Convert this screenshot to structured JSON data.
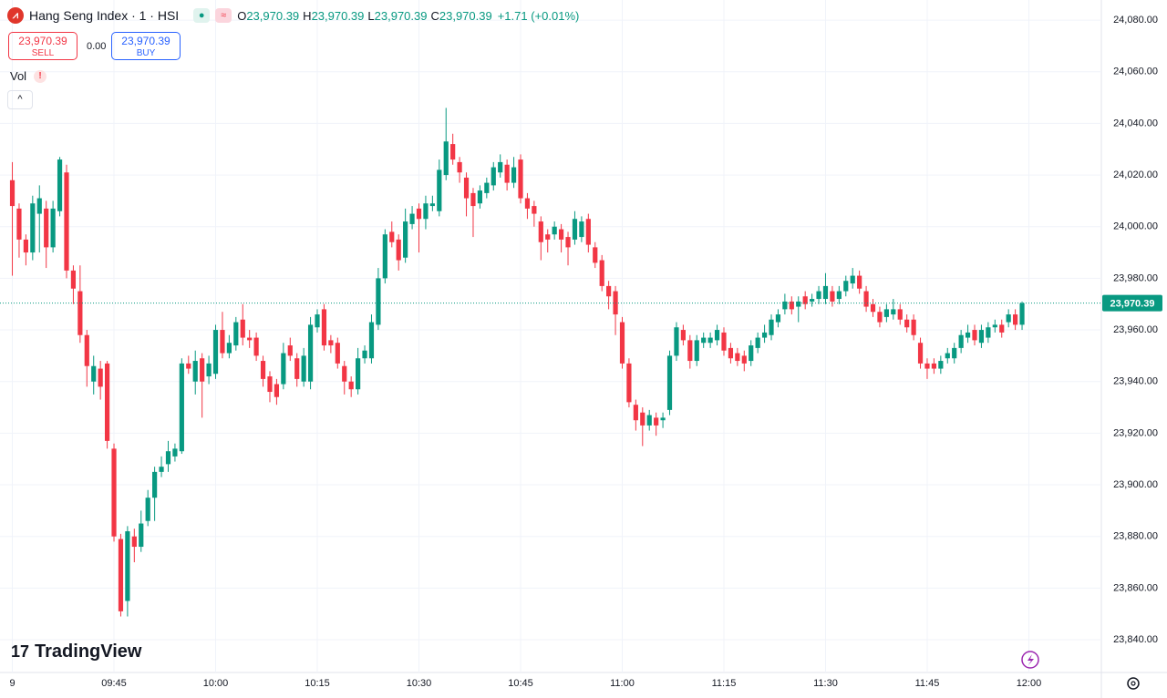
{
  "toolbar": {
    "sell": {
      "price": "23,970.39",
      "label": "SELL"
    },
    "spread": "0.00",
    "buy": {
      "price": "23,970.39",
      "label": "BUY"
    },
    "indicator": "Vol",
    "brand": "TradingView"
  },
  "chart_data": {
    "type": "candlestick",
    "title": "Hang Seng Index · 1 · HSI",
    "ohlc_header": [
      {
        "label": "O",
        "value": "23,970.39"
      },
      {
        "label": "H",
        "value": "23,970.39"
      },
      {
        "label": "L",
        "value": "23,970.39"
      },
      {
        "label": "C",
        "value": "23,970.39"
      }
    ],
    "change": "+1.71 (+0.01%)",
    "up_color": "#089981",
    "down_color": "#f23645",
    "grid": true,
    "last_price": {
      "value": 23970.39,
      "label": "23,970.39"
    },
    "ylim": [
      23827.3,
      24087.8
    ],
    "yticks": [
      {
        "value": 24080,
        "label": "24,080.00"
      },
      {
        "value": 24060,
        "label": "24,060.00"
      },
      {
        "value": 24040,
        "label": "24,040.00"
      },
      {
        "value": 24020,
        "label": "24,020.00"
      },
      {
        "value": 24000,
        "label": "24,000.00"
      },
      {
        "value": 23980,
        "label": "23,980.00"
      },
      {
        "value": 23960,
        "label": "23,960.00"
      },
      {
        "value": 23940,
        "label": "23,940.00"
      },
      {
        "value": 23920,
        "label": "23,920.00"
      },
      {
        "value": 23900,
        "label": "23,900.00"
      },
      {
        "value": 23880,
        "label": "23,880.00"
      },
      {
        "value": 23860,
        "label": "23,860.00"
      },
      {
        "value": 23840,
        "label": "23,840.00"
      }
    ],
    "xlim": [
      -1.82,
      160.7
    ],
    "xticks": [
      {
        "value": 0,
        "label": "9"
      },
      {
        "value": 15,
        "label": "09:45"
      },
      {
        "value": 30,
        "label": "10:00"
      },
      {
        "value": 45,
        "label": "10:15"
      },
      {
        "value": 60,
        "label": "10:30"
      },
      {
        "value": 75,
        "label": "10:45"
      },
      {
        "value": 90,
        "label": "11:00"
      },
      {
        "value": 105,
        "label": "11:15"
      },
      {
        "value": 120,
        "label": "11:30"
      },
      {
        "value": 135,
        "label": "11:45"
      },
      {
        "value": 150,
        "label": "12:00"
      }
    ],
    "open": [
      24018,
      24007,
      23995,
      23990,
      24005,
      24007,
      23992,
      24006,
      24021,
      23983,
      23975,
      23958,
      23940,
      23945,
      23947,
      23914,
      23879,
      23855,
      23880,
      23876,
      23886,
      23895,
      23905,
      23908,
      23911,
      23913,
      23947,
      23940,
      23949,
      23942,
      23943,
      23960,
      23951,
      23954,
      23964,
      23957,
      23957,
      23948,
      23942,
      23939,
      23939,
      23954,
      23949,
      23940,
      23940,
      23961,
      23968,
      23956,
      23955,
      23946,
      23940,
      23937,
      23949,
      23949,
      23962,
      23980,
      23998,
      23995,
      23988,
      24001,
      24007,
      24003,
      24008,
      24006,
      24020,
      24032,
      24025,
      24019,
      24013,
      24009,
      24013,
      24016,
      24021,
      24024,
      24017,
      24026,
      24011,
      24008,
      24002,
      23997,
      23997,
      23999,
      23996,
      23995,
      23996,
      24003,
      23992,
      23987,
      23977,
      23975,
      23963,
      23947,
      23931,
      23928,
      23923,
      23926,
      23925,
      23929,
      23950,
      23960,
      23956,
      23948,
      23955,
      23955,
      23956,
      23959,
      23953,
      23951,
      23950,
      23948,
      23953,
      23957,
      23958,
      23963,
      23968,
      23971,
      23969,
      23973,
      23971,
      23972,
      23972,
      23975,
      23972,
      23975,
      23978,
      23981,
      23975,
      23970,
      23967,
      23965,
      23966,
      23968,
      23964,
      23964,
      23955,
      23947,
      23947,
      23945,
      23949,
      23949,
      23953,
      23957,
      23960,
      23955,
      23957,
      23961,
      23962,
      23963,
      23966,
      23962
    ],
    "high": [
      24025,
      24009,
      23997,
      24012,
      24016,
      24010,
      24010,
      24027,
      24024,
      23985,
      23985,
      23960,
      23950,
      23948,
      23948,
      23916,
      23881,
      23884,
      23883,
      23890,
      23898,
      23907,
      23911,
      23917,
      23916,
      23949,
      23950,
      23952,
      23951,
      23950,
      23962,
      23967,
      23958,
      23965,
      23970,
      23960,
      23959,
      23950,
      23944,
      23941,
      23955,
      23957,
      23951,
      23953,
      23965,
      23968,
      23970,
      23958,
      23957,
      23948,
      23942,
      23953,
      23954,
      23966,
      23984,
      23999,
      24002,
      23997,
      24007,
      24008,
      24009,
      24012,
      24012,
      24026,
      24046,
      24036,
      24027,
      24021,
      24015,
      24016,
      24019,
      24025,
      24028,
      24026,
      24027,
      24028,
      24013,
      24010,
      24004,
      23999,
      24002,
      24001,
      23998,
      24006,
      24004,
      24005,
      23994,
      23989,
      23979,
      23977,
      23965,
      23949,
      23933,
      23930,
      23929,
      23928,
      23928,
      23952,
      23963,
      23962,
      23958,
      23958,
      23959,
      23959,
      23962,
      23961,
      23955,
      23953,
      23952,
      23956,
      23959,
      23962,
      23966,
      23968,
      23974,
      23973,
      23973,
      23975,
      23974,
      23977,
      23982,
      23977,
      23977,
      23981,
      23984,
      23983,
      23977,
      23972,
      23969,
      23970,
      23972,
      23970,
      23966,
      23966,
      23957,
      23949,
      23949,
      23950,
      23953,
      23955,
      23960,
      23962,
      23962,
      23962,
      23963,
      23964,
      23964,
      23968,
      23968,
      23971
    ],
    "low": [
      23981,
      23988,
      23985,
      23987,
      23990,
      23984,
      23990,
      24004,
      23980,
      23970,
      23955,
      23938,
      23935,
      23933,
      23914,
      23878,
      23849,
      23849,
      23870,
      23874,
      23884,
      23886,
      23903,
      23905,
      23909,
      23912,
      23943,
      23935,
      23926,
      23939,
      23941,
      23949,
      23949,
      23952,
      23954,
      23953,
      23948,
      23938,
      23932,
      23931,
      23937,
      23948,
      23938,
      23938,
      23937,
      23959,
      23952,
      23951,
      23945,
      23935,
      23934,
      23935,
      23947,
      23947,
      23960,
      23978,
      23992,
      23983,
      23986,
      23999,
      23990,
      23999,
      24006,
      24004,
      24018,
      24024,
      24017,
      24004,
      23996,
      24007,
      24011,
      24014,
      24019,
      24014,
      24015,
      24009,
      24003,
      24000,
      23987,
      23990,
      23995,
      23990,
      23985,
      23993,
      23994,
      23990,
      23984,
      23975,
      23968,
      23958,
      23945,
      23930,
      23921,
      23915,
      23921,
      23919,
      23922,
      23927,
      23948,
      23954,
      23945,
      23946,
      23953,
      23953,
      23954,
      23950,
      23947,
      23946,
      23944,
      23946,
      23951,
      23955,
      23956,
      23961,
      23966,
      23966,
      23963,
      23968,
      23969,
      23970,
      23970,
      23969,
      23970,
      23973,
      23976,
      23974,
      23967,
      23965,
      23961,
      23963,
      23964,
      23962,
      23959,
      23956,
      23945,
      23941,
      23943,
      23943,
      23947,
      23947,
      23951,
      23955,
      23954,
      23953,
      23955,
      23959,
      23957,
      23961,
      23960,
      23960
    ],
    "close": [
      24008,
      23995,
      23990,
      24009,
      24011,
      23992,
      24007,
      24026,
      23983,
      23976,
      23958,
      23946,
      23946,
      23938,
      23917,
      23880,
      23851,
      23882,
      23876,
      23885,
      23895,
      23905,
      23907,
      23913,
      23914,
      23947,
      23945,
      23948,
      23940,
      23947,
      23960,
      23951,
      23955,
      23963,
      23957,
      23956,
      23950,
      23941,
      23936,
      23934,
      23951,
      23950,
      23941,
      23950,
      23962,
      23966,
      23954,
      23954,
      23947,
      23940,
      23937,
      23949,
      23952,
      23963,
      23980,
      23997,
      23994,
      23987,
      24002,
      24005,
      24003,
      24009,
      24009,
      24022,
      24033,
      24026,
      24021,
      24011,
      24008,
      24014,
      24017,
      24023,
      24025,
      24017,
      24023,
      24011,
      24007,
      24005,
      23994,
      23995,
      24000,
      23995,
      23992,
      24003,
      24002,
      23993,
      23986,
      23977,
      23973,
      23966,
      23947,
      23932,
      23925,
      23923,
      23927,
      23923,
      23926,
      23950,
      23961,
      23956,
      23948,
      23956,
      23957,
      23957,
      23960,
      23952,
      23949,
      23948,
      23947,
      23954,
      23957,
      23959,
      23964,
      23966,
      23971,
      23968,
      23971,
      23970,
      23972,
      23975,
      23977,
      23971,
      23975,
      23979,
      23981,
      23976,
      23969,
      23967,
      23963,
      23968,
      23968,
      23964,
      23961,
      23958,
      23947,
      23945,
      23945,
      23948,
      23951,
      23953,
      23958,
      23959,
      23956,
      23960,
      23961,
      23962,
      23959,
      23966,
      23962,
      23970.39
    ]
  }
}
